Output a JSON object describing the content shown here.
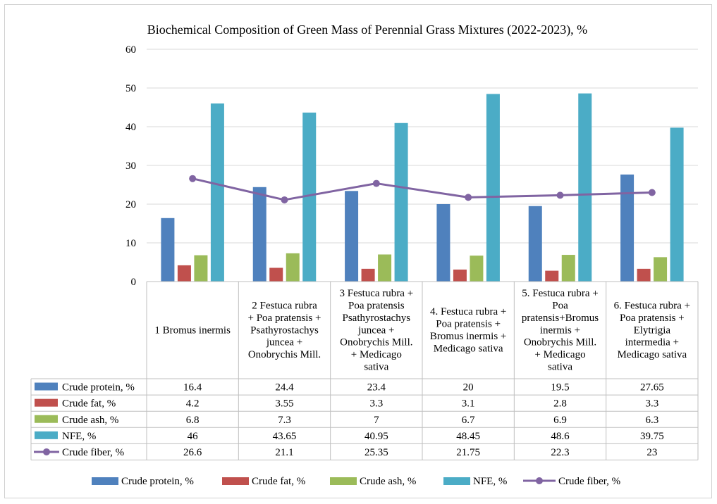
{
  "chart_data": {
    "type": "bar",
    "title": "Biochemical Composition of Green Mass of Perennial Grass Mixtures (2022-2023), %",
    "ylim": [
      0,
      60
    ],
    "yticks": [
      0,
      10,
      20,
      30,
      40,
      50,
      60
    ],
    "grid": true,
    "legend_position": "bottom",
    "categories": [
      [
        "1 Bromus inermis"
      ],
      [
        "2   Festuca rubra",
        "+ Poa pratensis +",
        "Psathyrostachys",
        "juncea +",
        "Onobrychis Mill."
      ],
      [
        "3 Festuca rubra +",
        "Poa pratensis",
        "Psathyrostachys",
        "juncea +",
        "Onobrychis Mill.",
        "+ Medicago",
        "sativa"
      ],
      [
        "4. Festuca rubra +",
        "Poa pratensis +",
        "Bromus inermis +",
        "Medicago sativa"
      ],
      [
        "5. Festuca rubra +",
        "Poa",
        "pratensis+Bromus",
        "inermis +",
        "Onobrychis Mill.",
        "+ Medicago",
        "sativa"
      ],
      [
        "6. Festuca rubra +",
        "Poa pratensis +",
        "Elytrigia",
        "intermedia +",
        "Medicago sativa"
      ]
    ],
    "series": [
      {
        "name": "Crude protein, %",
        "kind": "bar",
        "color": "#4f81bd",
        "values": [
          16.4,
          24.4,
          23.4,
          20,
          19.5,
          27.65
        ],
        "labels": [
          "16.4",
          "24.4",
          "23.4",
          "20",
          "19.5",
          "27.65"
        ]
      },
      {
        "name": "Crude fat, %",
        "kind": "bar",
        "color": "#c0504d",
        "values": [
          4.2,
          3.55,
          3.3,
          3.1,
          2.8,
          3.3
        ],
        "labels": [
          "4.2",
          "3.55",
          "3.3",
          "3.1",
          "2.8",
          "3.3"
        ]
      },
      {
        "name": "Crude ash, %",
        "kind": "bar",
        "color": "#9bbb59",
        "values": [
          6.8,
          7.3,
          7,
          6.7,
          6.9,
          6.3
        ],
        "labels": [
          "6.8",
          "7.3",
          "7",
          "6.7",
          "6.9",
          "6.3"
        ]
      },
      {
        "name": "NFE, %",
        "kind": "bar",
        "color": "#4bacc6",
        "values": [
          46,
          43.65,
          40.95,
          48.45,
          48.6,
          39.75
        ],
        "labels": [
          "46",
          "43.65",
          "40.95",
          "48.45",
          "48.6",
          "39.75"
        ]
      },
      {
        "name": "Crude fiber, %",
        "kind": "line",
        "color": "#8064a2",
        "values": [
          26.6,
          21.1,
          25.35,
          21.75,
          22.3,
          23
        ],
        "labels": [
          "26.6",
          "21.1",
          "25.35",
          "21.75",
          "22.3",
          "23"
        ]
      }
    ]
  }
}
